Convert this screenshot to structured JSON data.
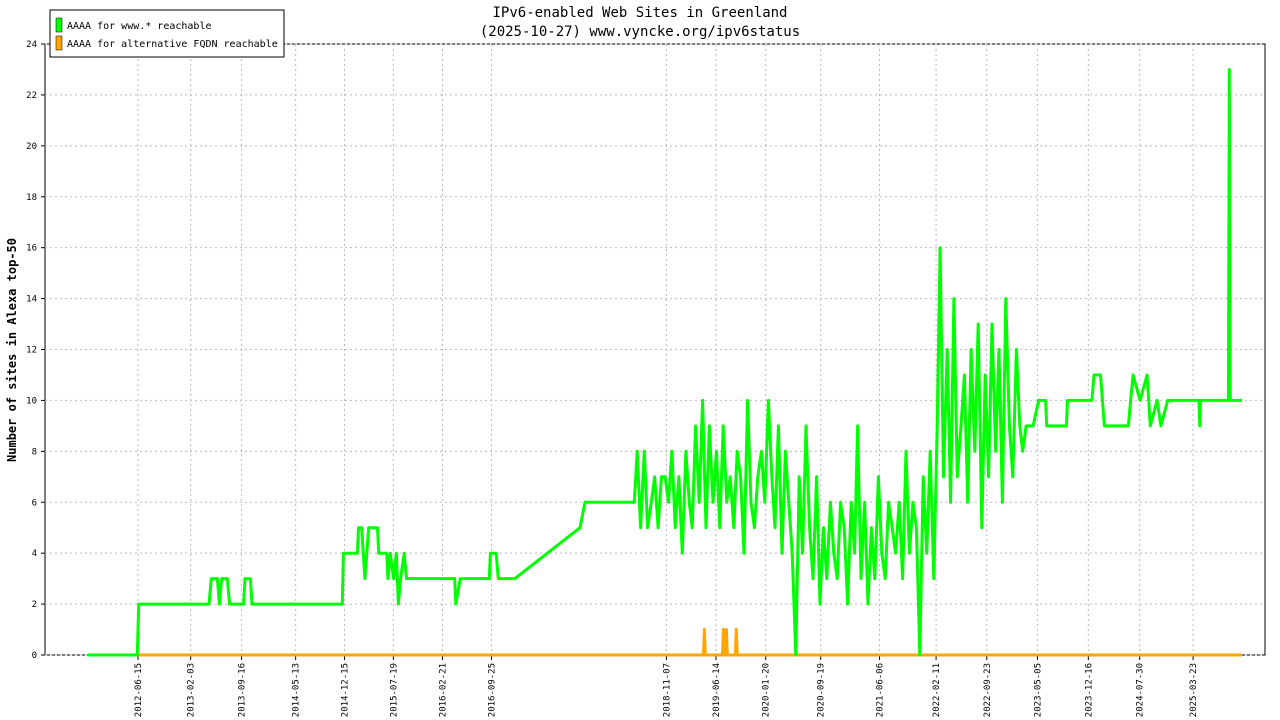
{
  "chart_data": {
    "type": "line",
    "title": "IPv6-enabled Web Sites in Greenland",
    "subtitle": "(2025-10-27) www.vyncke.org/ipv6status",
    "y_label": "Number of sites in Alexa top-50",
    "xlim": [
      "2011-05-01",
      "2026-02-04"
    ],
    "xticks": [
      "2012-06-15",
      "2013-02-03",
      "2013-09-16",
      "2014-05-13",
      "2014-12-15",
      "2015-07-19",
      "2016-02-21",
      "2016-09-25",
      "2018-11-07",
      "2019-06-14",
      "2020-01-20",
      "2020-09-19",
      "2021-06-06",
      "2022-02-11",
      "2022-09-23",
      "2023-05-05",
      "2023-12-16",
      "2024-07-30",
      "2025-03-23"
    ],
    "ylim": [
      0,
      24
    ],
    "yticks": [
      0,
      2,
      4,
      6,
      8,
      10,
      12,
      14,
      16,
      18,
      20,
      22,
      24
    ],
    "grid": true,
    "legend": "top-left",
    "series": [
      {
        "name": "AAAA for www.* reachable",
        "color": "#00ff00",
        "x": [
          "2011-11-06",
          "2012-06-12",
          "2012-06-18",
          "2013-04-25",
          "2013-05-05",
          "2013-06-01",
          "2013-06-10",
          "2013-06-20",
          "2013-07-15",
          "2013-07-25",
          "2013-09-25",
          "2013-10-01",
          "2013-10-25",
          "2013-11-01",
          "2014-12-05",
          "2014-12-10",
          "2015-02-10",
          "2015-02-15",
          "2015-03-01",
          "2015-03-15",
          "2015-04-01",
          "2015-05-10",
          "2015-05-15",
          "2015-06-20",
          "2015-06-25",
          "2015-07-05",
          "2015-07-20",
          "2015-08-01",
          "2015-08-10",
          "2015-08-20",
          "2015-09-05",
          "2015-09-15",
          "2016-04-15",
          "2016-04-20",
          "2016-05-10",
          "2016-09-15",
          "2016-09-20",
          "2016-10-15",
          "2016-10-25",
          "2017-01-06",
          "2017-10-21",
          "2017-11-12",
          "2018-06-18",
          "2018-07-01",
          "2018-07-16",
          "2018-08-01",
          "2018-08-16",
          "2018-09-01",
          "2018-09-16",
          "2018-10-01",
          "2018-10-16",
          "2018-11-01",
          "2018-11-16",
          "2018-12-01",
          "2018-12-16",
          "2019-01-01",
          "2019-01-16",
          "2019-02-01",
          "2019-02-16",
          "2019-03-01",
          "2019-03-16",
          "2019-04-01",
          "2019-04-16",
          "2019-05-01",
          "2019-05-16",
          "2019-06-01",
          "2019-06-16",
          "2019-07-01",
          "2019-07-16",
          "2019-08-01",
          "2019-08-16",
          "2019-09-01",
          "2019-09-16",
          "2019-10-01",
          "2019-10-16",
          "2019-11-01",
          "2019-11-16",
          "2019-12-01",
          "2019-12-16",
          "2020-01-01",
          "2020-01-16",
          "2020-02-01",
          "2020-02-16",
          "2020-03-01",
          "2020-03-16",
          "2020-04-01",
          "2020-04-16",
          "2020-05-01",
          "2020-05-16",
          "2020-06-01",
          "2020-06-16",
          "2020-07-01",
          "2020-07-16",
          "2020-08-01",
          "2020-08-16",
          "2020-09-01",
          "2020-09-16",
          "2020-10-01",
          "2020-10-16",
          "2020-11-01",
          "2020-11-16",
          "2020-12-01",
          "2020-12-16",
          "2021-01-01",
          "2021-01-16",
          "2021-02-01",
          "2021-02-16",
          "2021-03-01",
          "2021-03-16",
          "2021-04-01",
          "2021-04-16",
          "2021-05-01",
          "2021-05-16",
          "2021-06-01",
          "2021-06-16",
          "2021-07-01",
          "2021-07-16",
          "2021-08-01",
          "2021-08-16",
          "2021-09-01",
          "2021-09-16",
          "2021-10-01",
          "2021-10-16",
          "2021-11-01",
          "2021-11-16",
          "2021-12-01",
          "2021-12-16",
          "2022-01-01",
          "2022-01-16",
          "2022-02-01",
          "2022-02-16",
          "2022-03-01",
          "2022-03-16",
          "2022-04-01",
          "2022-04-16",
          "2022-05-01",
          "2022-05-16",
          "2022-06-01",
          "2022-06-16",
          "2022-07-01",
          "2022-07-16",
          "2022-08-01",
          "2022-08-16",
          "2022-09-01",
          "2022-09-16",
          "2022-10-01",
          "2022-10-16",
          "2022-11-01",
          "2022-11-16",
          "2022-12-01",
          "2022-12-16",
          "2023-01-01",
          "2023-01-16",
          "2023-02-01",
          "2023-02-16",
          "2023-03-01",
          "2023-03-16",
          "2023-04-01",
          "2023-04-16",
          "2023-05-10",
          "2023-06-10",
          "2023-06-15",
          "2023-09-10",
          "2023-09-15",
          "2024-01-01",
          "2024-01-10",
          "2024-02-08",
          "2024-02-25",
          "2024-06-10",
          "2024-06-20",
          "2024-07-01",
          "2024-08-01",
          "2024-09-01",
          "2024-09-15",
          "2024-10-15",
          "2024-11-01",
          "2024-12-01",
          "2025-04-18",
          "2025-04-22",
          "2025-04-25",
          "2025-08-26",
          "2025-08-30",
          "2025-09-03",
          "2025-10-25"
        ],
        "values": [
          0,
          0,
          2,
          2,
          3,
          3,
          2,
          3,
          3,
          2,
          2,
          3,
          3,
          2,
          2,
          4,
          4,
          5,
          5,
          3,
          5,
          5,
          4,
          4,
          3,
          4,
          3,
          4,
          2,
          3,
          4,
          3,
          3,
          2,
          3,
          3,
          4,
          4,
          3,
          3,
          5,
          6,
          6,
          8,
          5,
          8,
          5,
          6,
          7,
          5,
          7,
          7,
          6,
          8,
          5,
          7,
          4,
          8,
          6,
          5,
          9,
          6,
          10,
          5,
          9,
          6,
          8,
          5,
          9,
          6,
          7,
          5,
          8,
          7,
          4,
          10,
          6,
          5,
          7,
          8,
          6,
          10,
          7,
          5,
          9,
          4,
          8,
          6,
          4,
          0,
          7,
          4,
          9,
          5,
          3,
          7,
          2,
          5,
          3,
          6,
          4,
          3,
          6,
          5,
          2,
          6,
          4,
          9,
          3,
          6,
          2,
          5,
          3,
          7,
          4,
          3,
          6,
          5,
          4,
          6,
          3,
          8,
          4,
          6,
          5,
          0,
          7,
          4,
          8,
          3,
          9,
          16,
          7,
          12,
          6,
          14,
          7,
          9,
          11,
          6,
          12,
          8,
          13,
          5,
          11,
          7,
          13,
          8,
          12,
          6,
          14,
          9,
          7,
          12,
          9,
          8,
          9,
          9,
          9,
          10,
          10,
          9,
          9,
          10,
          10,
          11,
          11,
          9,
          9,
          10,
          11,
          10,
          11,
          9,
          10,
          9,
          10,
          10,
          9,
          10,
          10,
          23,
          10,
          10
        ]
      },
      {
        "name": "AAAA for alternative FQDN reachable",
        "color": "#ffa500",
        "x": [
          "2011-11-06",
          "2019-04-20",
          "2019-04-24",
          "2019-04-28",
          "2019-07-13",
          "2019-07-17",
          "2019-07-21",
          "2019-07-26",
          "2019-07-30",
          "2019-08-03",
          "2019-09-08",
          "2019-09-12",
          "2019-09-16",
          "2025-10-25"
        ],
        "values": [
          0,
          0,
          1,
          0,
          0,
          1,
          0,
          0,
          1,
          0,
          0,
          1,
          0,
          0
        ]
      }
    ]
  }
}
